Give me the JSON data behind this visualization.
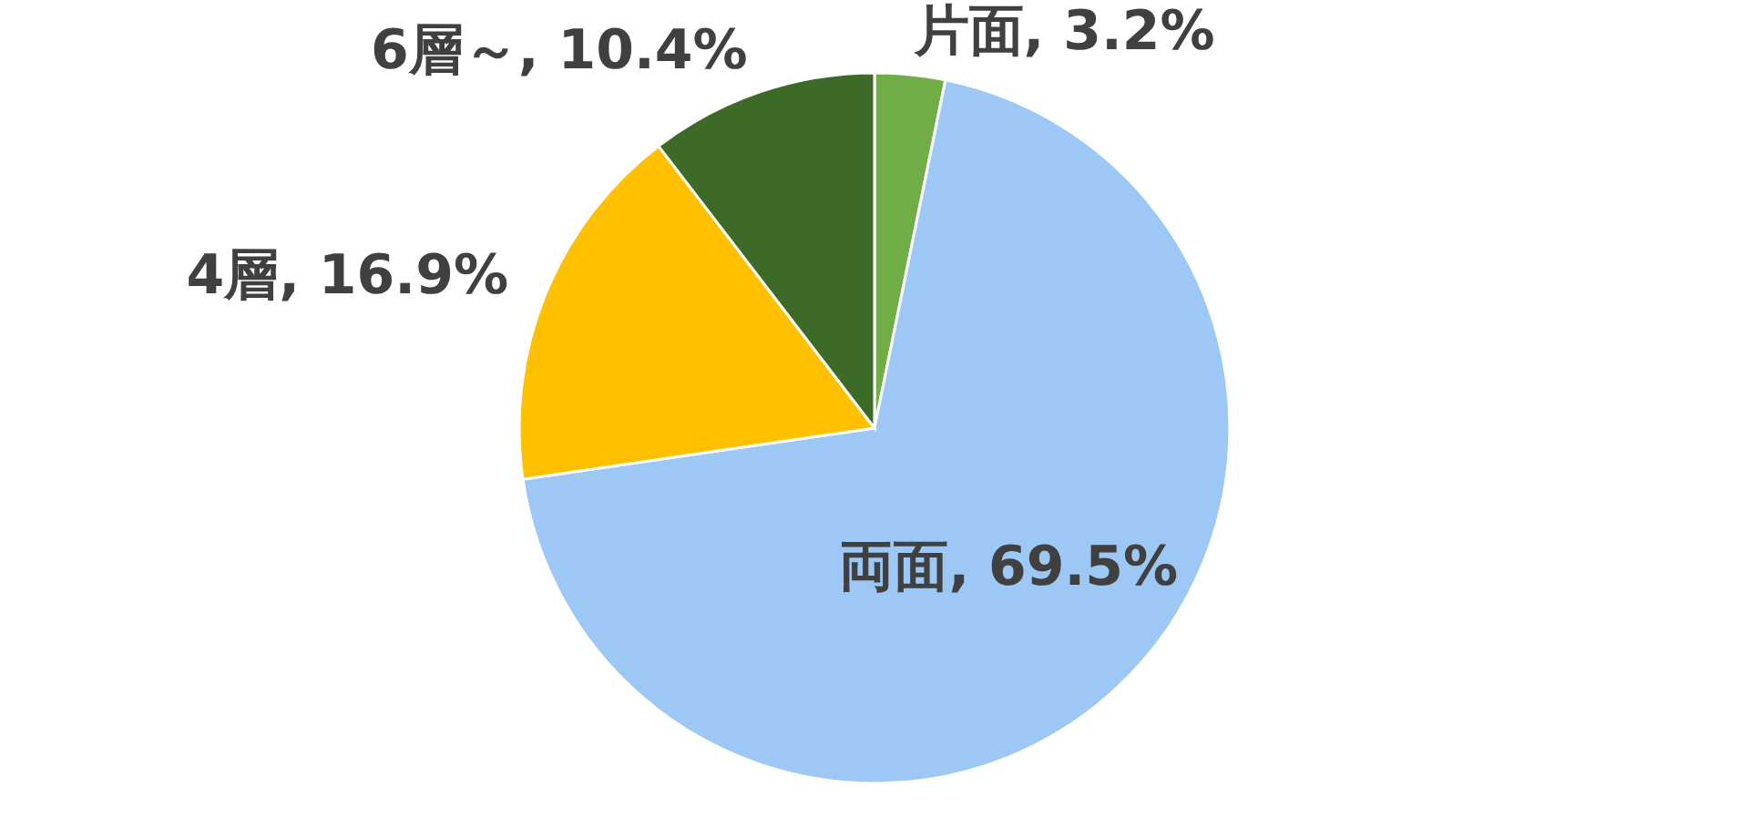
{
  "chart_data": {
    "type": "pie",
    "categories": [
      "片面",
      "両面",
      "4層",
      "6層～"
    ],
    "values": [
      3.2,
      69.5,
      16.9,
      10.4
    ],
    "colors": [
      "#70ad47",
      "#9dc8f5",
      "#ffc000",
      "#3d6b27"
    ],
    "value_labels": [
      ", 3.2%",
      ", 69.5%",
      ", 16.9%",
      ", 10.4%"
    ]
  }
}
